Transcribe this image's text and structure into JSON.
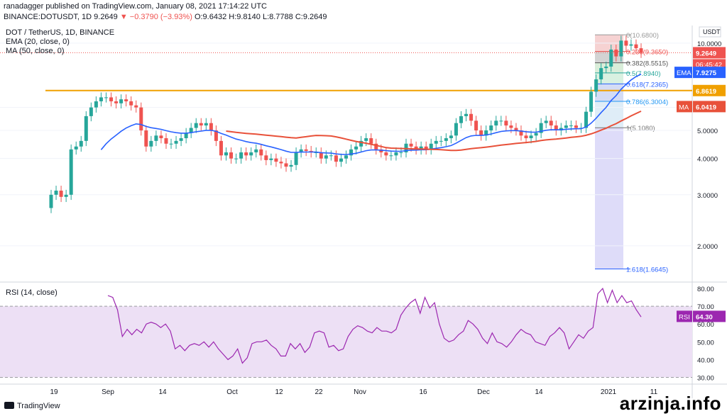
{
  "header": {
    "line1": "ranadagger published on TradingView.com, January 08, 2021 17:14:22 UTC",
    "symbol": "BINANCE:DOTUSDT, 1D",
    "close": "9.2649",
    "change": "▼ −0.3790 (−3.93%)",
    "ohlc": "O:9.6432 H:9.8140 L:8.7788 C:9.2649"
  },
  "legend": {
    "title": "DOT / TetherUS, 1D, BINANCE",
    "ema": "EMA (20, close, 0)",
    "ma": "MA (50, close, 0)",
    "rsi": "RSI (14, close)"
  },
  "footer": {
    "brand": "TradingView",
    "watermark": "arzinja.info"
  },
  "colors": {
    "up": "#26a69a",
    "down": "#ef5350",
    "ema": "#2962ff",
    "ma": "#e8513a",
    "support": "#f0a000",
    "rsi": "#9c27b0",
    "rsi_band": "#ede0f5"
  },
  "chart_data": [
    {
      "type": "candlestick",
      "title": "DOT / TetherUS, 1D, BINANCE",
      "ylim": [
        1.5,
        11.5
      ],
      "y_ticks": [
        2.0,
        3.0,
        4.0,
        5.0,
        6.0,
        10.0
      ],
      "unit": "USDT",
      "x_ticks": [
        "19",
        "Sep",
        "14",
        "Oct",
        "12",
        "22",
        "Nov",
        "16",
        "Dec",
        "14",
        "2021",
        "11"
      ],
      "last_price": "9.2649",
      "countdown": "06:45:42",
      "ema_value": "7.9275",
      "ma_value": "6.0419",
      "support_level": "6.8619",
      "fib_levels": [
        {
          "ratio": "0",
          "value": 10.68,
          "label": "0(10.6800)"
        },
        {
          "ratio": "0.236",
          "value": 9.365,
          "label": "0.236(9.3650)"
        },
        {
          "ratio": "0.382",
          "value": 8.5515,
          "label": "0.382(8.5515)"
        },
        {
          "ratio": "0.5",
          "value": 7.894,
          "label": "0.5(7.8940)"
        },
        {
          "ratio": "0.618",
          "value": 7.2365,
          "label": "0.618(7.2365)"
        },
        {
          "ratio": "0.786",
          "value": 6.3004,
          "label": "0.786(6.3004)"
        },
        {
          "ratio": "1",
          "value": 5.108,
          "label": "1(5.1080)"
        },
        {
          "ratio": "1.618",
          "value": 1.6645,
          "label": "1.618(1.6645)"
        }
      ],
      "close_path": [
        3.0,
        3.1,
        2.95,
        3.0,
        4.3,
        4.4,
        4.6,
        5.6,
        6.0,
        6.3,
        6.5,
        6.5,
        6.3,
        6.2,
        6.4,
        6.3,
        6.1,
        6.0,
        5.0,
        4.4,
        4.6,
        4.8,
        4.7,
        4.5,
        4.5,
        4.6,
        4.7,
        4.9,
        5.1,
        5.3,
        5.2,
        5.3,
        5.0,
        4.6,
        4.1,
        4.2,
        4.0,
        4.0,
        4.2,
        4.1,
        4.2,
        4.3,
        4.1,
        3.95,
        4.0,
        3.9,
        3.85,
        3.75,
        3.8,
        4.2,
        4.3,
        4.25,
        4.2,
        4.2,
        4.0,
        4.1,
        4.1,
        3.9,
        4.0,
        4.1,
        4.3,
        4.4,
        4.6,
        4.7,
        4.5,
        4.3,
        4.2,
        4.1,
        4.1,
        4.2,
        4.2,
        4.5,
        4.4,
        4.3,
        4.4,
        4.3,
        4.5,
        4.6,
        4.6,
        4.7,
        4.8,
        5.3,
        5.6,
        5.7,
        5.4,
        5.0,
        4.8,
        5.0,
        5.2,
        5.4,
        5.4,
        5.2,
        5.1,
        5.0,
        4.8,
        4.7,
        4.8,
        4.9,
        5.3,
        5.4,
        5.2,
        5.0,
        5.1,
        5.2,
        5.2,
        5.1,
        5.1,
        5.8,
        6.8,
        7.5,
        8.2,
        8.3,
        9.5,
        9.0,
        10.2,
        9.8,
        9.9,
        9.6,
        9.26
      ]
    },
    {
      "type": "line",
      "title": "RSI (14, close)",
      "ylim": [
        27,
        82
      ],
      "y_ticks": [
        30.0,
        40.0,
        50.0,
        60.0,
        70.0,
        80.0
      ],
      "bands": [
        30,
        70
      ],
      "last_value": "64.30",
      "values": [
        76,
        75,
        68,
        53,
        57,
        54,
        57,
        55,
        60,
        61,
        60,
        58,
        60,
        56,
        46,
        48,
        45,
        48,
        49,
        48,
        50,
        47,
        50,
        46,
        43,
        40,
        42,
        46,
        38,
        41,
        49,
        50,
        50,
        51,
        48,
        46,
        42,
        42,
        49,
        46,
        49,
        44,
        47,
        55,
        56,
        55,
        47,
        48,
        45,
        46,
        53,
        57,
        59,
        58,
        56,
        55,
        58,
        56,
        56,
        55,
        57,
        65,
        69,
        72,
        74,
        66,
        75,
        69,
        72,
        60,
        52,
        50,
        51,
        54,
        56,
        62,
        60,
        57,
        52,
        49,
        55,
        50,
        49,
        47,
        50,
        54,
        57,
        55,
        54,
        50,
        49,
        48,
        53,
        55,
        58,
        55,
        46,
        50,
        54,
        52,
        56,
        58,
        77,
        80,
        72,
        79,
        72,
        76,
        72,
        73,
        68,
        64
      ]
    }
  ]
}
